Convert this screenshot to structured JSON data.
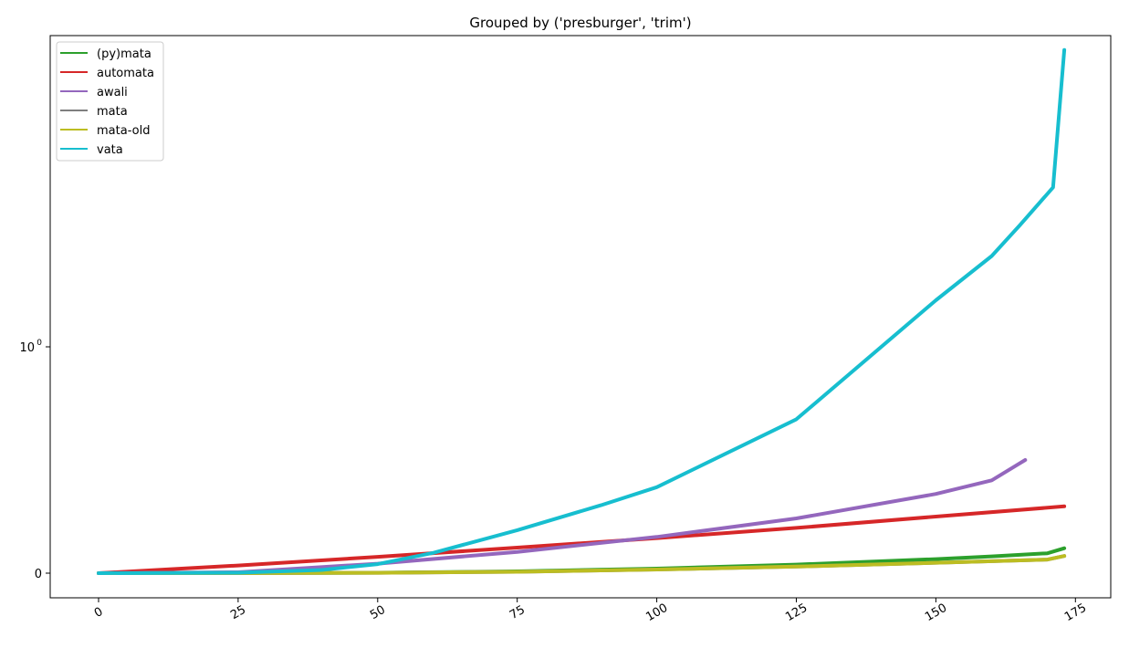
{
  "chart_data": {
    "type": "line",
    "title": "Grouped by ('presburger', 'trim')",
    "xlabel": "",
    "ylabel": "",
    "xlim": [
      -8.5,
      181.5
    ],
    "xticks": [
      0,
      25,
      50,
      75,
      100,
      125,
      150,
      175
    ],
    "yscale": "symlog (linear near 0, log above 1)",
    "yticks": [
      {
        "value": 0,
        "label": "0"
      },
      {
        "value": 1,
        "label": "10",
        "exponent": "0"
      }
    ],
    "grid": false,
    "legend_position": "top-left",
    "series": [
      {
        "name": "(py)mata",
        "color": "#2ca02c",
        "x": [
          0,
          25,
          50,
          75,
          100,
          125,
          150,
          160,
          170,
          173
        ],
        "y": [
          0,
          0.0006,
          0.002,
          0.008,
          0.02,
          0.038,
          0.062,
          0.074,
          0.088,
          0.11
        ]
      },
      {
        "name": "automata",
        "color": "#d62728",
        "x": [
          0,
          25,
          50,
          75,
          100,
          125,
          150,
          173
        ],
        "y": [
          0,
          0.034,
          0.072,
          0.113,
          0.155,
          0.2,
          0.25,
          0.295
        ]
      },
      {
        "name": "awali",
        "color": "#9467bd",
        "x": [
          0,
          25,
          50,
          75,
          100,
          125,
          150,
          160,
          166
        ],
        "y": [
          0,
          0.004,
          0.042,
          0.094,
          0.16,
          0.242,
          0.35,
          0.41,
          0.5
        ]
      },
      {
        "name": "mata",
        "color": "#7f7f7f",
        "x": [
          0,
          25,
          50,
          75,
          100,
          125,
          150,
          170,
          173
        ],
        "y": [
          0,
          0.0004,
          0.0015,
          0.006,
          0.016,
          0.029,
          0.046,
          0.06,
          0.076
        ]
      },
      {
        "name": "mata-old",
        "color": "#bcbd22",
        "x": [
          0,
          25,
          50,
          75,
          100,
          125,
          150,
          170,
          173
        ],
        "y": [
          0,
          0.0004,
          0.0015,
          0.006,
          0.016,
          0.029,
          0.046,
          0.06,
          0.076
        ]
      },
      {
        "name": "vata",
        "color": "#17becf",
        "x": [
          0,
          25,
          40,
          50,
          60,
          75,
          90,
          100,
          125,
          150,
          160,
          165,
          171,
          173
        ],
        "y": [
          0,
          0.002,
          0.014,
          0.04,
          0.09,
          0.19,
          0.3,
          0.38,
          0.68,
          1.6,
          2.5,
          3.4,
          5.0,
          20
        ]
      }
    ]
  }
}
